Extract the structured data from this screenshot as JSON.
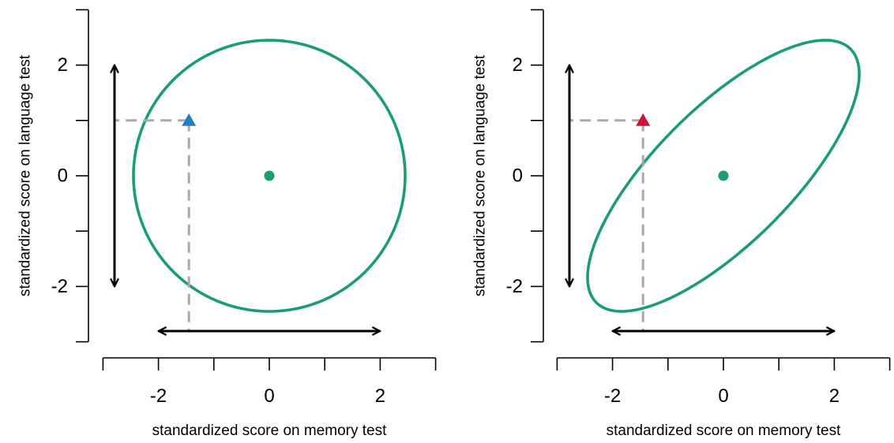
{
  "chart_data": [
    {
      "type": "scatter",
      "panel": "left",
      "xlabel": "standardized score on memory test",
      "ylabel": "standardized score on language test",
      "xlim": [
        -3,
        3
      ],
      "ylim": [
        -3,
        3
      ],
      "x_ticks": [
        -3,
        -2,
        -1,
        0,
        1,
        2,
        3
      ],
      "x_tick_labels": [
        "-2",
        "0",
        "2"
      ],
      "y_ticks": [
        -3,
        -2,
        -1,
        0,
        1,
        2,
        3
      ],
      "y_tick_labels": [
        "-2",
        "0",
        "2"
      ],
      "grid": false,
      "center": {
        "x": 0,
        "y": 0,
        "color": "#1a9e6e"
      },
      "ellipse": {
        "cx": 0,
        "cy": 0,
        "radius": 2.45,
        "correlation": 0,
        "color": "#1a9e6e"
      },
      "point": {
        "x": -1.45,
        "y": 1.0,
        "marker": "triangle",
        "color": "#1f7fc2"
      },
      "x_range_arrow": [
        -2,
        2
      ],
      "y_range_arrow": [
        -2,
        2
      ],
      "colors": {
        "ellipse": "#1a9e6e",
        "guide": "#aaaaaa",
        "arrow": "#000000"
      }
    },
    {
      "type": "scatter",
      "panel": "right",
      "xlabel": "standardized score on memory test",
      "ylabel": "standardized score on language test",
      "xlim": [
        -3,
        3
      ],
      "ylim": [
        -3,
        3
      ],
      "x_ticks": [
        -3,
        -2,
        -1,
        0,
        1,
        2,
        3
      ],
      "x_tick_labels": [
        "-2",
        "0",
        "2"
      ],
      "y_ticks": [
        -3,
        -2,
        -1,
        0,
        1,
        2,
        3
      ],
      "y_tick_labels": [
        "-2",
        "0",
        "2"
      ],
      "grid": false,
      "center": {
        "x": 0,
        "y": 0,
        "color": "#1a9e6e"
      },
      "ellipse": {
        "cx": 0,
        "cy": 0,
        "radius": 2.45,
        "correlation": 0.75,
        "color": "#1a9e6e"
      },
      "point": {
        "x": -1.45,
        "y": 1.0,
        "marker": "triangle",
        "color": "#d0103a"
      },
      "x_range_arrow": [
        -2,
        2
      ],
      "y_range_arrow": [
        -2,
        2
      ],
      "colors": {
        "ellipse": "#1a9e6e",
        "guide": "#aaaaaa",
        "arrow": "#000000"
      }
    }
  ]
}
